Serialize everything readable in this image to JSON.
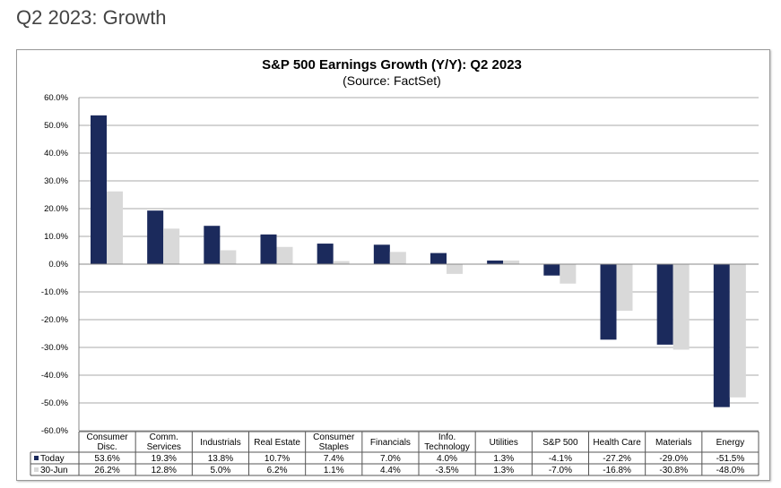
{
  "page_title": "Q2 2023: Growth",
  "chart_data": {
    "type": "bar",
    "title": "S&P 500 Earnings Growth (Y/Y): Q2 2023",
    "subtitle": "(Source: FactSet)",
    "categories": [
      [
        "Consumer",
        "Disc."
      ],
      [
        "Comm.",
        "Services"
      ],
      [
        "Industrials"
      ],
      [
        "Real Estate"
      ],
      [
        "Consumer",
        "Staples"
      ],
      [
        "Financials"
      ],
      [
        "Info.",
        "Technology"
      ],
      [
        "Utilities"
      ],
      [
        "S&P 500"
      ],
      [
        "Health Care"
      ],
      [
        "Materials"
      ],
      [
        "Energy"
      ]
    ],
    "ylim": [
      -60,
      60
    ],
    "yticks": [
      "60.0%",
      "50.0%",
      "40.0%",
      "30.0%",
      "20.0%",
      "10.0%",
      "0.0%",
      "-10.0%",
      "-20.0%",
      "-30.0%",
      "-40.0%",
      "-50.0%",
      "-60.0%"
    ],
    "grid": true,
    "series": [
      {
        "name": "Today",
        "color": "#1b2a5c",
        "values": [
          53.6,
          19.3,
          13.8,
          10.7,
          7.4,
          7.0,
          4.0,
          1.3,
          -4.1,
          -27.2,
          -29.0,
          -51.5
        ],
        "labels": [
          "53.6%",
          "19.3%",
          "13.8%",
          "10.7%",
          "7.4%",
          "7.0%",
          "4.0%",
          "1.3%",
          "-4.1%",
          "-27.2%",
          "-29.0%",
          "-51.5%"
        ]
      },
      {
        "name": "30-Jun",
        "color": "#d9d9d9",
        "values": [
          26.2,
          12.8,
          5.0,
          6.2,
          1.1,
          4.4,
          -3.5,
          1.3,
          -7.0,
          -16.8,
          -30.8,
          -48.0
        ],
        "labels": [
          "26.2%",
          "12.8%",
          "5.0%",
          "6.2%",
          "1.1%",
          "4.4%",
          "-3.5%",
          "1.3%",
          "-7.0%",
          "-16.8%",
          "-30.8%",
          "-48.0%"
        ]
      }
    ]
  }
}
